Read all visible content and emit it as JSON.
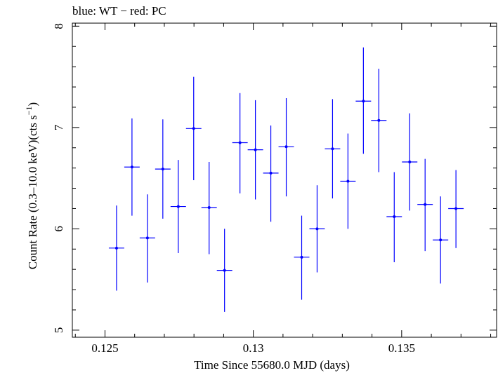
{
  "chart_data": {
    "type": "scatter",
    "title": "blue: WT − red: PC",
    "xlabel": "Time Since 55680.0 MJD (days)",
    "ylabel_main": "Count Rate (0.3–10.0 keV)(cts s",
    "ylabel_sup": "−1",
    "ylabel_close": ")",
    "xlim": [
      0.1239,
      0.1382
    ],
    "ylim": [
      4.93,
      8.03
    ],
    "xticks": [
      {
        "value": 0.125,
        "label": "0.125"
      },
      {
        "value": 0.13,
        "label": "0.13"
      },
      {
        "value": 0.135,
        "label": "0.135"
      }
    ],
    "yticks": [
      {
        "value": 5,
        "label": "5"
      },
      {
        "value": 6,
        "label": "6"
      },
      {
        "value": 7,
        "label": "7"
      },
      {
        "value": 8,
        "label": "8"
      }
    ],
    "x_minor_step": 0.001,
    "y_minor_step": 0.2,
    "color": "#0000ff",
    "series": [
      {
        "color": "#0000ff",
        "points": [
          {
            "x": 0.12539,
            "xerr": 0.00026,
            "y": 5.81,
            "ylo": 5.39,
            "yhi": 6.23
          },
          {
            "x": 0.12591,
            "xerr": 0.00026,
            "y": 6.61,
            "ylo": 6.13,
            "yhi": 7.09
          },
          {
            "x": 0.12643,
            "xerr": 0.00026,
            "y": 5.91,
            "ylo": 5.47,
            "yhi": 6.34
          },
          {
            "x": 0.12695,
            "xerr": 0.00026,
            "y": 6.59,
            "ylo": 6.1,
            "yhi": 7.08
          },
          {
            "x": 0.12747,
            "xerr": 0.00026,
            "y": 6.22,
            "ylo": 5.76,
            "yhi": 6.68
          },
          {
            "x": 0.12799,
            "xerr": 0.00026,
            "y": 6.99,
            "ylo": 6.48,
            "yhi": 7.5
          },
          {
            "x": 0.12851,
            "xerr": 0.00026,
            "y": 6.21,
            "ylo": 5.75,
            "yhi": 6.66
          },
          {
            "x": 0.12903,
            "xerr": 0.00026,
            "y": 5.59,
            "ylo": 5.18,
            "yhi": 6.0
          },
          {
            "x": 0.12955,
            "xerr": 0.00026,
            "y": 6.85,
            "ylo": 6.35,
            "yhi": 7.34
          },
          {
            "x": 0.13007,
            "xerr": 0.00026,
            "y": 6.78,
            "ylo": 6.29,
            "yhi": 7.27
          },
          {
            "x": 0.13059,
            "xerr": 0.00026,
            "y": 6.55,
            "ylo": 6.07,
            "yhi": 7.02
          },
          {
            "x": 0.13111,
            "xerr": 0.00026,
            "y": 6.81,
            "ylo": 6.32,
            "yhi": 7.29
          },
          {
            "x": 0.13163,
            "xerr": 0.00026,
            "y": 5.72,
            "ylo": 5.3,
            "yhi": 6.13
          },
          {
            "x": 0.13215,
            "xerr": 0.00026,
            "y": 6.0,
            "ylo": 5.57,
            "yhi": 6.43
          },
          {
            "x": 0.13267,
            "xerr": 0.00026,
            "y": 6.79,
            "ylo": 6.3,
            "yhi": 7.28
          },
          {
            "x": 0.13319,
            "xerr": 0.00026,
            "y": 6.47,
            "ylo": 6.0,
            "yhi": 6.94
          },
          {
            "x": 0.13371,
            "xerr": 0.00026,
            "y": 7.26,
            "ylo": 6.74,
            "yhi": 7.79
          },
          {
            "x": 0.13423,
            "xerr": 0.00026,
            "y": 7.07,
            "ylo": 6.56,
            "yhi": 7.58
          },
          {
            "x": 0.13475,
            "xerr": 0.00026,
            "y": 6.12,
            "ylo": 5.67,
            "yhi": 6.56
          },
          {
            "x": 0.13527,
            "xerr": 0.00026,
            "y": 6.66,
            "ylo": 6.18,
            "yhi": 7.14
          },
          {
            "x": 0.13579,
            "xerr": 0.00026,
            "y": 6.24,
            "ylo": 5.78,
            "yhi": 6.69
          },
          {
            "x": 0.13631,
            "xerr": 0.00026,
            "y": 5.89,
            "ylo": 5.46,
            "yhi": 6.32
          },
          {
            "x": 0.13683,
            "xerr": 0.00026,
            "y": 6.2,
            "ylo": 5.81,
            "yhi": 6.58
          }
        ]
      }
    ]
  }
}
